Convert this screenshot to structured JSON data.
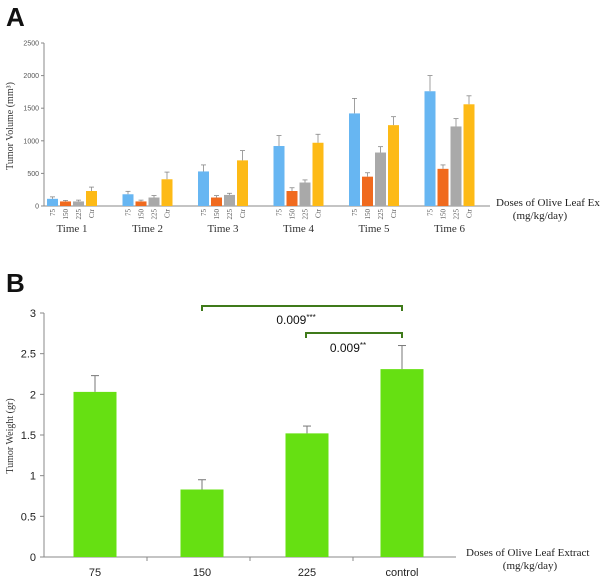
{
  "panel_a": {
    "letter": "A",
    "ylabel": "Tumor Volume (mm³)",
    "xnote_line1": "Doses of Olive Leaf Extract",
    "xnote_line2": "(mg/kg/day)"
  },
  "panel_b": {
    "letter": "B",
    "ylabel": "Tumor Weight (gr)",
    "xnote_line1": "Doses of Olive Leaf Extract",
    "xnote_line2": "(mg/kg/day)",
    "sig_top": {
      "value": "0.009",
      "stars": "***"
    },
    "sig_bottom": {
      "value": "0.009",
      "stars": "**"
    }
  },
  "colors": {
    "s75": "#67B6F2",
    "s150": "#F06A1E",
    "s225": "#A9A9A9",
    "ctr": "#FDBA16",
    "panel_b_bar": "#66E012",
    "bracket": "#3F7A1A",
    "axis": "#888888"
  },
  "chart_data": [
    {
      "type": "bar",
      "ylabel": "Tumor Volume (mm³)",
      "ylim": [
        0,
        2500
      ],
      "yticks": [
        0,
        500,
        1000,
        1500,
        2000,
        2500
      ],
      "groups": [
        "Time 1",
        "Time 2",
        "Time 3",
        "Time 4",
        "Time 5",
        "Time 6"
      ],
      "series_labels": [
        "75",
        "150",
        "225",
        "Ctr"
      ],
      "series": [
        {
          "values": [
            110,
            180,
            530,
            920,
            1420,
            1760
          ],
          "errors": [
            30,
            45,
            100,
            160,
            230,
            240
          ]
        },
        {
          "values": [
            70,
            70,
            130,
            230,
            450,
            570
          ],
          "errors": [
            15,
            20,
            30,
            50,
            60,
            60
          ]
        },
        {
          "values": [
            70,
            130,
            170,
            360,
            820,
            1220
          ],
          "errors": [
            20,
            30,
            25,
            40,
            90,
            120
          ]
        },
        {
          "values": [
            230,
            410,
            700,
            970,
            1240,
            1560
          ],
          "errors": [
            60,
            110,
            150,
            130,
            130,
            130
          ]
        }
      ]
    },
    {
      "type": "bar",
      "ylabel": "Tumor Weight (gr)",
      "ylim": [
        0,
        3
      ],
      "yticks": [
        "0",
        "0.5",
        "1",
        "1.5",
        "2",
        "2.5",
        "3"
      ],
      "categories": [
        "75",
        "150",
        "225",
        "control"
      ],
      "values": [
        2.03,
        0.83,
        1.52,
        2.31
      ],
      "errors": [
        0.2,
        0.12,
        0.09,
        0.29
      ]
    }
  ]
}
